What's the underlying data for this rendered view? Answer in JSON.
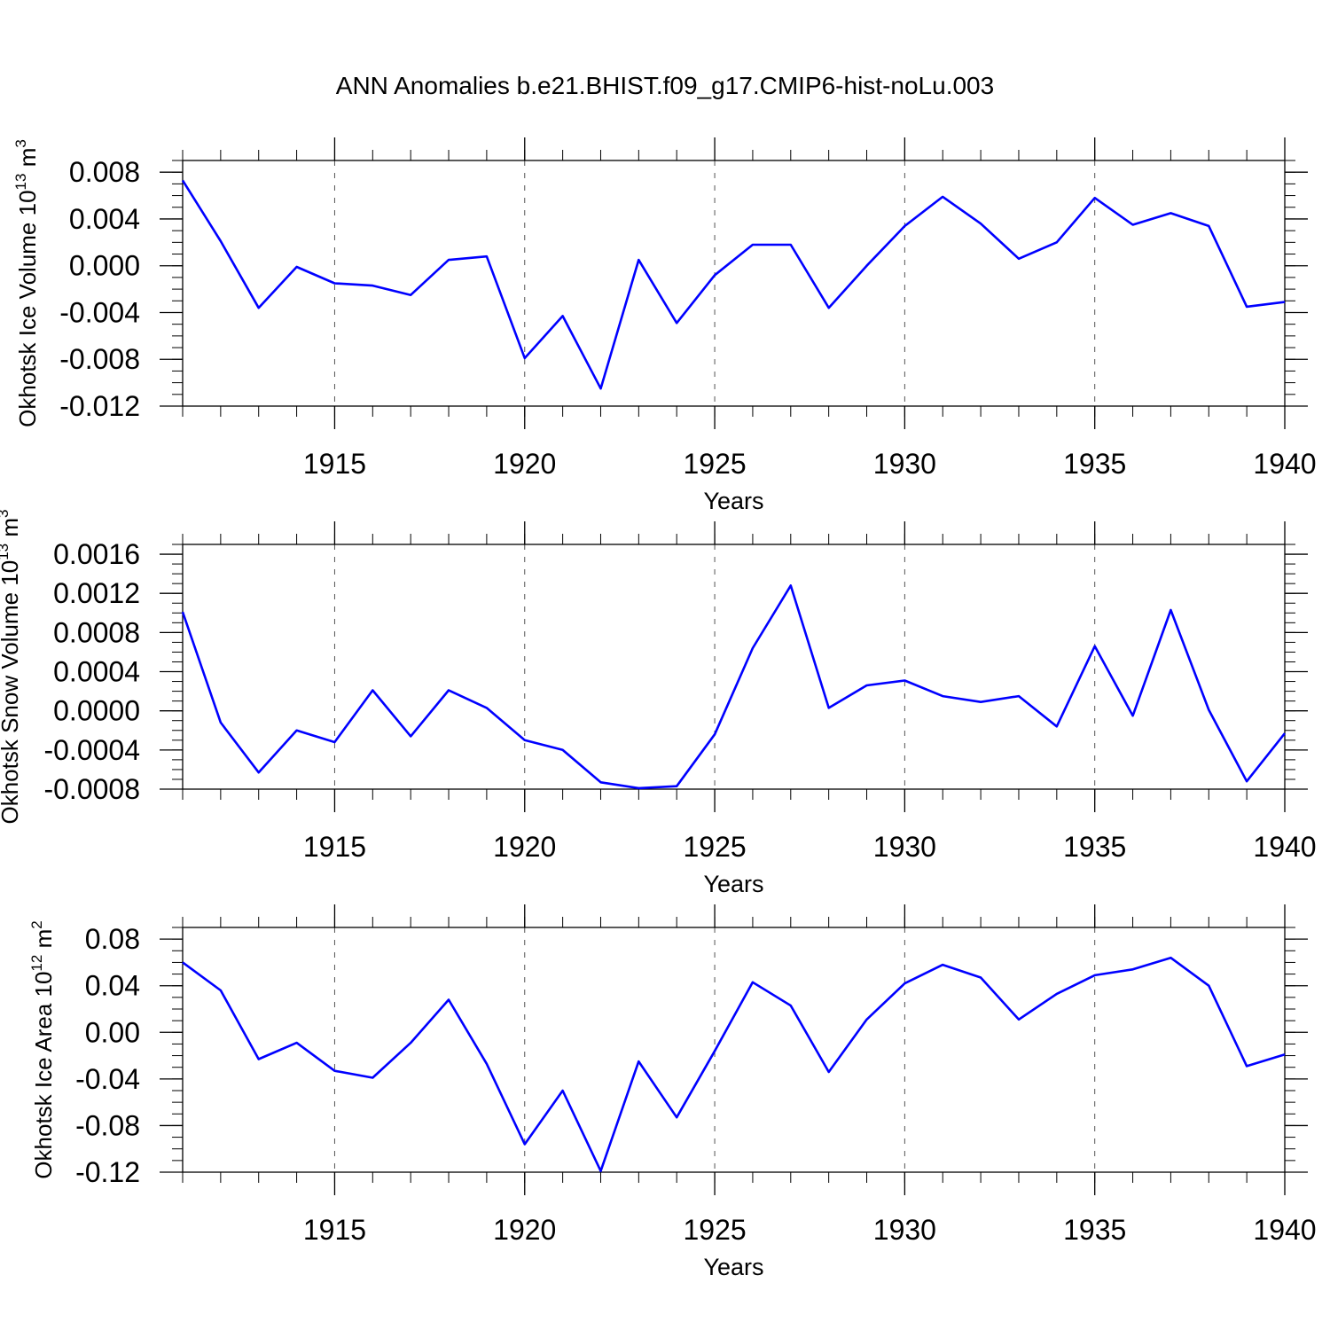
{
  "page": {
    "title": "ANN Anomalies b.e21.BHIST.f09_g17.CMIP6-hist-noLu.003"
  },
  "style": {
    "line_color": "#0000ff",
    "axis_color": "#000000",
    "grid_color": "#555555"
  },
  "chart_data": [
    {
      "type": "line",
      "ylabel": "Okhotsk Ice Volume 10",
      "ylabel_exp": "13",
      "ylabel_unit": "m",
      "ylabel_unit_exp": "3",
      "xlabel": "Years",
      "xlim": [
        1911,
        1940
      ],
      "ylim": [
        -0.012,
        0.009
      ],
      "xticks": [
        1915,
        1920,
        1925,
        1930,
        1935,
        1940
      ],
      "xtick_labels": [
        "1915",
        "1920",
        "1925",
        "1930",
        "1935",
        "1940"
      ],
      "yticks": [
        0.008,
        0.004,
        0.0,
        -0.004,
        -0.008,
        -0.012
      ],
      "ytick_labels": [
        "0.008",
        "0.004",
        "0.000",
        "-0.004",
        "-0.008",
        "-0.012"
      ],
      "grid": "vertical dashed at major x ticks",
      "x": [
        1911,
        1912,
        1913,
        1914,
        1915,
        1916,
        1917,
        1918,
        1919,
        1920,
        1921,
        1922,
        1923,
        1924,
        1925,
        1926,
        1927,
        1928,
        1929,
        1930,
        1931,
        1932,
        1933,
        1934,
        1935,
        1936,
        1937,
        1938,
        1939,
        1940
      ],
      "series": [
        {
          "values": [
            0.0073,
            0.0021,
            -0.0036,
            -0.0001,
            -0.0015,
            -0.0017,
            -0.0025,
            0.0005,
            0.0008,
            -0.0079,
            -0.0043,
            -0.0105,
            0.0005,
            -0.0049,
            -0.0008,
            0.0018,
            0.0018,
            -0.0036,
            0.0,
            0.0034,
            0.0059,
            0.0036,
            0.0006,
            0.002,
            0.0058,
            0.0035,
            0.0045,
            0.0034,
            -0.0035,
            -0.0031
          ]
        }
      ]
    },
    {
      "type": "line",
      "ylabel": "Okhotsk Snow Volume 10",
      "ylabel_exp": "13",
      "ylabel_unit": "m",
      "ylabel_unit_exp": "3",
      "xlabel": "Years",
      "xlim": [
        1911,
        1940
      ],
      "ylim": [
        -0.0008,
        0.0017
      ],
      "xticks": [
        1915,
        1920,
        1925,
        1930,
        1935,
        1940
      ],
      "xtick_labels": [
        "1915",
        "1920",
        "1925",
        "1930",
        "1935",
        "1940"
      ],
      "yticks": [
        0.0016,
        0.0012,
        0.0008,
        0.0004,
        0.0,
        -0.0004,
        -0.0008
      ],
      "ytick_labels": [
        "0.0016",
        "0.0012",
        "0.0008",
        "0.0004",
        "0.0000",
        "-0.0004",
        "-0.0008"
      ],
      "grid": "vertical dashed at major x ticks",
      "x": [
        1911,
        1912,
        1913,
        1914,
        1915,
        1916,
        1917,
        1918,
        1919,
        1920,
        1921,
        1922,
        1923,
        1924,
        1925,
        1926,
        1927,
        1928,
        1929,
        1930,
        1931,
        1932,
        1933,
        1934,
        1935,
        1936,
        1937,
        1938,
        1939,
        1940
      ],
      "series": [
        {
          "values": [
            0.00101,
            -0.00012,
            -0.00063,
            -0.0002,
            -0.00032,
            0.00021,
            -0.00026,
            0.00021,
            3e-05,
            -0.0003,
            -0.0004,
            -0.00073,
            -0.00079,
            -0.00077,
            -0.00024,
            0.00064,
            0.00128,
            3e-05,
            0.00026,
            0.00031,
            0.00015,
            9e-05,
            0.00015,
            -0.00016,
            0.00066,
            -5e-05,
            0.00103,
            1e-05,
            -0.00072,
            -0.00023
          ]
        }
      ]
    },
    {
      "type": "line",
      "ylabel": "Okhotsk Ice Area 10",
      "ylabel_exp": "12",
      "ylabel_unit": "m",
      "ylabel_unit_exp": "2",
      "xlabel": "Years",
      "xlim": [
        1911,
        1940
      ],
      "ylim": [
        -0.12,
        0.09
      ],
      "xticks": [
        1915,
        1920,
        1925,
        1930,
        1935,
        1940
      ],
      "xtick_labels": [
        "1915",
        "1920",
        "1925",
        "1930",
        "1935",
        "1940"
      ],
      "yticks": [
        0.08,
        0.04,
        0.0,
        -0.04,
        -0.08,
        -0.12
      ],
      "ytick_labels": [
        "0.08",
        "0.04",
        "0.00",
        "-0.04",
        "-0.08",
        "-0.12"
      ],
      "grid": "vertical dashed at major x ticks",
      "x": [
        1911,
        1912,
        1913,
        1914,
        1915,
        1916,
        1917,
        1918,
        1919,
        1920,
        1921,
        1922,
        1923,
        1924,
        1925,
        1926,
        1927,
        1928,
        1929,
        1930,
        1931,
        1932,
        1933,
        1934,
        1935,
        1936,
        1937,
        1938,
        1939,
        1940
      ],
      "series": [
        {
          "values": [
            0.06,
            0.036,
            -0.023,
            -0.009,
            -0.033,
            -0.039,
            -0.009,
            0.028,
            -0.027,
            -0.096,
            -0.05,
            -0.119,
            -0.025,
            -0.073,
            -0.016,
            0.043,
            0.023,
            -0.034,
            0.011,
            0.042,
            0.058,
            0.047,
            0.011,
            0.033,
            0.049,
            0.054,
            0.064,
            0.04,
            -0.029,
            -0.019
          ]
        }
      ]
    }
  ]
}
